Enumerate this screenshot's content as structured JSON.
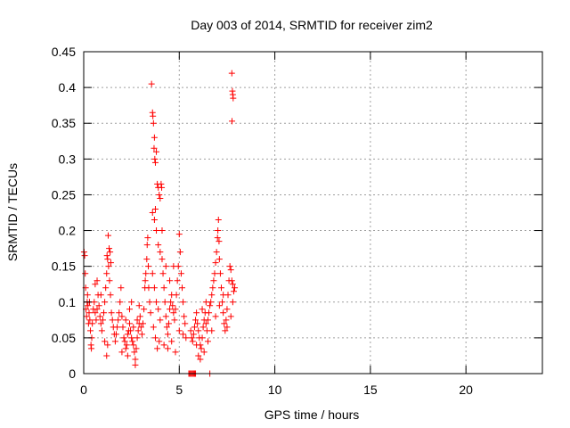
{
  "chart_data": {
    "type": "scatter",
    "title": "Day 003 of 2014, SRMTID for receiver zim2",
    "xlabel": "GPS time / hours",
    "ylabel": "SRMTID / TECUs",
    "xlim": [
      0,
      24
    ],
    "ylim": [
      0,
      0.45
    ],
    "xticks": [
      0,
      5,
      10,
      15,
      20
    ],
    "yticks": [
      0,
      0.05,
      0.1,
      0.15,
      0.2,
      0.25,
      0.3,
      0.35,
      0.4,
      0.45
    ],
    "grid": true,
    "marker": "+",
    "color": "#ff0000",
    "series": [
      {
        "name": "SRMTID",
        "points": [
          [
            0.02,
            0.17
          ],
          [
            0.05,
            0.165
          ],
          [
            0.08,
            0.14
          ],
          [
            0.1,
            0.12
          ],
          [
            0.12,
            0.09
          ],
          [
            0.15,
            0.08
          ],
          [
            0.18,
            0.1
          ],
          [
            0.2,
            0.11
          ],
          [
            0.22,
            0.095
          ],
          [
            0.25,
            0.07
          ],
          [
            0.28,
            0.085
          ],
          [
            0.3,
            0.1
          ],
          [
            0.32,
            0.075
          ],
          [
            0.35,
            0.06
          ],
          [
            0.38,
            0.04
          ],
          [
            0.4,
            0.035
          ],
          [
            0.42,
            0.05
          ],
          [
            0.45,
            0.07
          ],
          [
            0.5,
            0.09
          ],
          [
            0.55,
            0.1
          ],
          [
            0.6,
            0.085
          ],
          [
            0.65,
            0.075
          ],
          [
            0.7,
            0.09
          ],
          [
            0.75,
            0.11
          ],
          [
            0.8,
            0.095
          ],
          [
            0.85,
            0.08
          ],
          [
            0.9,
            0.07
          ],
          [
            0.95,
            0.06
          ],
          [
            1.0,
            0.075
          ],
          [
            1.05,
            0.085
          ],
          [
            1.1,
            0.1
          ],
          [
            1.15,
            0.12
          ],
          [
            1.2,
            0.14
          ],
          [
            1.22,
            0.165
          ],
          [
            1.25,
            0.16
          ],
          [
            1.3,
            0.15
          ],
          [
            1.35,
            0.13
          ],
          [
            1.4,
            0.11
          ],
          [
            1.45,
            0.085
          ],
          [
            1.5,
            0.075
          ],
          [
            1.55,
            0.065
          ],
          [
            1.6,
            0.055
          ],
          [
            1.65,
            0.045
          ],
          [
            1.7,
            0.055
          ],
          [
            1.75,
            0.065
          ],
          [
            1.8,
            0.075
          ],
          [
            1.85,
            0.085
          ],
          [
            1.9,
            0.1
          ],
          [
            1.95,
            0.12
          ],
          [
            1.28,
            0.193
          ],
          [
            1.33,
            0.175
          ],
          [
            1.38,
            0.17
          ],
          [
            1.42,
            0.155
          ],
          [
            0.6,
            0.125
          ],
          [
            0.7,
            0.13
          ],
          [
            0.9,
            0.11
          ],
          [
            1.1,
            0.045
          ],
          [
            1.2,
            0.025
          ],
          [
            1.25,
            0.04
          ],
          [
            2.0,
            0.08
          ],
          [
            2.05,
            0.065
          ],
          [
            2.1,
            0.05
          ],
          [
            2.15,
            0.045
          ],
          [
            2.2,
            0.035
          ],
          [
            2.25,
            0.04
          ],
          [
            2.3,
            0.055
          ],
          [
            2.35,
            0.06
          ],
          [
            2.4,
            0.07
          ],
          [
            2.45,
            0.06
          ],
          [
            2.5,
            0.05
          ],
          [
            2.55,
            0.045
          ],
          [
            2.6,
            0.04
          ],
          [
            2.65,
            0.03
          ],
          [
            2.7,
            0.02
          ],
          [
            2.75,
            0.035
          ],
          [
            2.8,
            0.05
          ],
          [
            2.85,
            0.06
          ],
          [
            2.9,
            0.07
          ],
          [
            2.95,
            0.08
          ],
          [
            3.0,
            0.065
          ],
          [
            3.05,
            0.055
          ],
          [
            3.1,
            0.07
          ],
          [
            3.15,
            0.09
          ],
          [
            3.2,
            0.12
          ],
          [
            3.22,
            0.13
          ],
          [
            3.25,
            0.14
          ],
          [
            3.3,
            0.16
          ],
          [
            3.32,
            0.18
          ],
          [
            3.35,
            0.19
          ],
          [
            3.38,
            0.15
          ],
          [
            3.4,
            0.12
          ],
          [
            3.45,
            0.1
          ],
          [
            3.5,
            0.085
          ],
          [
            2.2,
            0.075
          ],
          [
            2.4,
            0.09
          ],
          [
            2.6,
            0.065
          ],
          [
            2.8,
            0.075
          ],
          [
            2.7,
            0.012
          ],
          [
            2.3,
            0.025
          ],
          [
            2.0,
            0.03
          ],
          [
            2.5,
            0.1
          ],
          [
            2.9,
            0.095
          ],
          [
            3.55,
            0.405
          ],
          [
            3.6,
            0.365
          ],
          [
            3.62,
            0.36
          ],
          [
            3.65,
            0.35
          ],
          [
            3.68,
            0.315
          ],
          [
            3.7,
            0.33
          ],
          [
            3.72,
            0.3
          ],
          [
            3.75,
            0.295
          ],
          [
            3.8,
            0.31
          ],
          [
            3.85,
            0.265
          ],
          [
            3.9,
            0.26
          ],
          [
            3.95,
            0.25
          ],
          [
            4.0,
            0.245
          ],
          [
            4.05,
            0.265
          ],
          [
            4.08,
            0.26
          ],
          [
            4.1,
            0.2
          ],
          [
            3.6,
            0.225
          ],
          [
            3.7,
            0.215
          ],
          [
            3.75,
            0.23
          ],
          [
            3.8,
            0.2
          ],
          [
            3.9,
            0.18
          ],
          [
            4.0,
            0.17
          ],
          [
            4.1,
            0.16
          ],
          [
            4.15,
            0.14
          ],
          [
            4.2,
            0.12
          ],
          [
            4.25,
            0.1
          ],
          [
            4.3,
            0.08
          ],
          [
            4.35,
            0.065
          ],
          [
            4.4,
            0.055
          ],
          [
            4.45,
            0.07
          ],
          [
            4.5,
            0.09
          ],
          [
            4.55,
            0.1
          ],
          [
            4.6,
            0.11
          ],
          [
            4.65,
            0.095
          ],
          [
            4.7,
            0.085
          ],
          [
            4.75,
            0.075
          ],
          [
            4.8,
            0.09
          ],
          [
            4.85,
            0.11
          ],
          [
            4.9,
            0.13
          ],
          [
            4.95,
            0.15
          ],
          [
            5.0,
            0.195
          ],
          [
            5.05,
            0.17
          ],
          [
            5.1,
            0.14
          ],
          [
            5.15,
            0.12
          ],
          [
            5.2,
            0.1
          ],
          [
            5.25,
            0.08
          ],
          [
            5.3,
            0.07
          ],
          [
            5.35,
            0.05
          ],
          [
            3.6,
            0.14
          ],
          [
            3.7,
            0.12
          ],
          [
            3.8,
            0.1
          ],
          [
            3.9,
            0.09
          ],
          [
            4.0,
            0.075
          ],
          [
            3.65,
            0.065
          ],
          [
            3.75,
            0.05
          ],
          [
            3.85,
            0.035
          ],
          [
            3.95,
            0.045
          ],
          [
            4.2,
            0.04
          ],
          [
            4.4,
            0.035
          ],
          [
            4.6,
            0.045
          ],
          [
            4.8,
            0.03
          ],
          [
            5.0,
            0.06
          ],
          [
            5.2,
            0.055
          ],
          [
            4.3,
            0.15
          ],
          [
            4.5,
            0.13
          ],
          [
            4.7,
            0.15
          ],
          [
            5.5,
            0.0
          ],
          [
            5.55,
            0.0
          ],
          [
            5.6,
            0.0
          ],
          [
            5.65,
            0.0
          ],
          [
            5.7,
            0.0
          ],
          [
            5.75,
            0.0
          ],
          [
            5.8,
            0.0
          ],
          [
            5.85,
            0.0
          ],
          [
            6.6,
            0.0
          ],
          [
            5.6,
            0.06
          ],
          [
            5.65,
            0.05
          ],
          [
            5.7,
            0.045
          ],
          [
            5.75,
            0.055
          ],
          [
            5.8,
            0.065
          ],
          [
            5.85,
            0.075
          ],
          [
            5.9,
            0.085
          ],
          [
            5.95,
            0.07
          ],
          [
            6.0,
            0.06
          ],
          [
            6.05,
            0.05
          ],
          [
            6.1,
            0.04
          ],
          [
            6.15,
            0.035
          ],
          [
            6.2,
            0.05
          ],
          [
            6.25,
            0.065
          ],
          [
            6.3,
            0.075
          ],
          [
            6.35,
            0.085
          ],
          [
            6.4,
            0.07
          ],
          [
            6.45,
            0.06
          ],
          [
            6.5,
            0.075
          ],
          [
            6.55,
            0.085
          ],
          [
            6.6,
            0.095
          ],
          [
            6.65,
            0.1
          ],
          [
            6.7,
            0.11
          ],
          [
            6.75,
            0.12
          ],
          [
            6.8,
            0.13
          ],
          [
            6.85,
            0.14
          ],
          [
            6.9,
            0.155
          ],
          [
            6.95,
            0.17
          ],
          [
            7.0,
            0.19
          ],
          [
            7.02,
            0.2
          ],
          [
            7.05,
            0.215
          ],
          [
            7.08,
            0.185
          ],
          [
            7.1,
            0.16
          ],
          [
            7.15,
            0.14
          ],
          [
            7.2,
            0.12
          ],
          [
            7.25,
            0.1
          ],
          [
            7.3,
            0.085
          ],
          [
            7.35,
            0.07
          ],
          [
            7.4,
            0.06
          ],
          [
            7.45,
            0.075
          ],
          [
            7.5,
            0.09
          ],
          [
            7.55,
            0.11
          ],
          [
            7.6,
            0.13
          ],
          [
            7.65,
            0.15
          ],
          [
            7.7,
            0.145
          ],
          [
            7.75,
            0.13
          ],
          [
            7.8,
            0.125
          ],
          [
            7.85,
            0.115
          ],
          [
            7.9,
            0.12
          ],
          [
            5.9,
            0.04
          ],
          [
            6.0,
            0.025
          ],
          [
            6.1,
            0.02
          ],
          [
            6.3,
            0.03
          ],
          [
            6.5,
            0.045
          ],
          [
            6.7,
            0.06
          ],
          [
            6.9,
            0.08
          ],
          [
            7.1,
            0.095
          ],
          [
            7.3,
            0.11
          ],
          [
            7.5,
            0.065
          ],
          [
            7.7,
            0.08
          ],
          [
            7.8,
            0.1
          ],
          [
            6.2,
            0.09
          ],
          [
            6.4,
            0.1
          ],
          [
            7.75,
            0.42
          ],
          [
            7.78,
            0.395
          ],
          [
            7.8,
            0.39
          ],
          [
            7.82,
            0.385
          ],
          [
            7.76,
            0.353
          ]
        ]
      }
    ]
  }
}
